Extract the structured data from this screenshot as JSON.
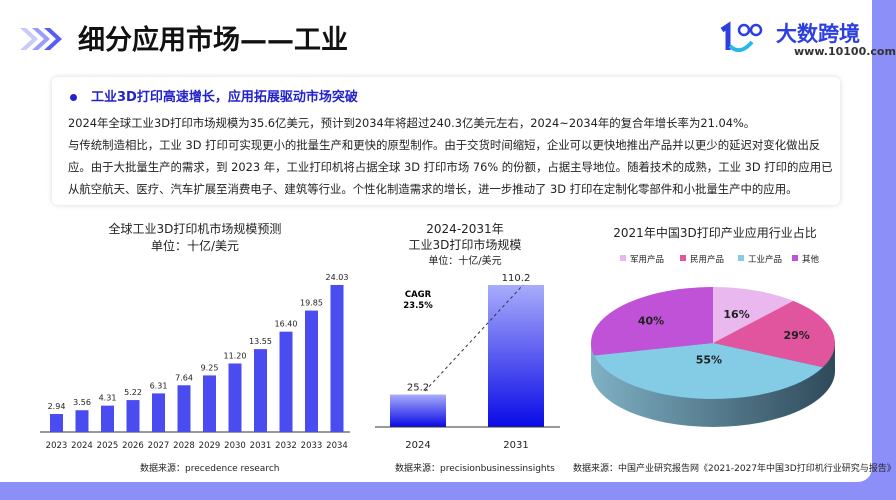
{
  "header": {
    "title": "细分应用市场——工业",
    "logo": {
      "name": "大数跨境",
      "url": "www.10100.com"
    }
  },
  "summary": {
    "heading": "工业3D打印高速增长，应用拓展驱动市场突破",
    "paragraphs": [
      "2024年全球工业3D打印市场规模为35.6亿美元，预计到2034年将超过240.3亿美元左右，2024~2034年的复合年增长率为21.04%。",
      "与传统制造相比，工业 3D 打印可实现更小的批量生产和更快的原型制作。由于交货时间缩短，企业可以更快地推出产品并以更少的延迟对变化做出反",
      "应。由于大批量生产的需求，到 2023 年，工业打印机将占据全球 3D 打印市场 76% 的份额，占据主导地位。随着技术的成熟，工业 3D 打印的应用已",
      "从航空航天、医疗、汽车扩展至消费电子、建筑等行业。个性化制造需求的增长，进一步推动了 3D 打印在定制化零部件和小批量生产中的应用。"
    ]
  },
  "chart_data": [
    {
      "type": "bar",
      "title": "全球工业3D打印机市场规模预测",
      "subtitle": "单位：十亿/美元",
      "categories": [
        "2023",
        "2024",
        "2025",
        "2026",
        "2027",
        "2028",
        "2029",
        "2030",
        "2031",
        "2032",
        "2033",
        "2034"
      ],
      "values": [
        2.94,
        3.56,
        4.31,
        5.22,
        6.31,
        7.64,
        9.25,
        11.2,
        13.55,
        16.4,
        19.85,
        24.03
      ],
      "labels": [
        "2.94",
        "3.56",
        "4.31",
        "5.22",
        "6.31",
        "7.64",
        "9.25",
        "11.20",
        "13.55",
        "16.40",
        "19.85",
        "24.03"
      ],
      "color": "#4a4cf0",
      "source": "数据来源：precedence research"
    },
    {
      "type": "bar",
      "title": "2024-2031年",
      "title2": "工业3D打印市场规模",
      "subtitle": "单位：十亿/美元",
      "categories": [
        "2024",
        "2031"
      ],
      "values": [
        25.2,
        110.2
      ],
      "labels": [
        "25.2",
        "110.2"
      ],
      "annotation": [
        "CAGR",
        "23.5%"
      ],
      "color": "#1a1ae8",
      "source": "数据来源：precisionbusinessinsights"
    },
    {
      "type": "pie",
      "title": "2021年中国3D打印产业应用行业占比",
      "categories": [
        "军用产品",
        "民用产品",
        "工业产品",
        "其他"
      ],
      "values": [
        16,
        29,
        55,
        40
      ],
      "labels": [
        "16%",
        "29%",
        "55%",
        "40%"
      ],
      "colors": [
        "#e8b8ee",
        "#e0559e",
        "#84cce6",
        "#c052d8"
      ],
      "source": "数据来源：中国产业研究报告网《2021-2027年中国3D打印机行业研究与报告》"
    }
  ]
}
